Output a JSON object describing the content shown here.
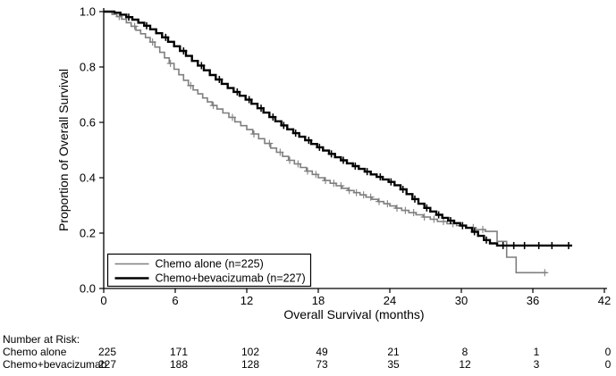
{
  "figure": {
    "background": "#ffffff"
  },
  "chart_data": {
    "type": "line",
    "subtype": "kaplan-meier-step",
    "title": "",
    "xlabel": "Overall Survival (months)",
    "ylabel": "Proportion of Overall Survival",
    "xlim": [
      0,
      42
    ],
    "ylim": [
      0,
      1.0
    ],
    "xticks": [
      0,
      6,
      12,
      18,
      24,
      30,
      36,
      42
    ],
    "yticks": [
      0.0,
      0.2,
      0.4,
      0.6,
      0.8,
      1.0
    ],
    "grid": false,
    "legend_position": "bottom-left-inside",
    "series": [
      {
        "name": "Chemo alone (n=225)",
        "color": "#7f7f7f",
        "line_width": 1.6,
        "points": [
          [
            0,
            1
          ],
          [
            0.7,
            0.99
          ],
          [
            1.1,
            0.982
          ],
          [
            1.5,
            0.973
          ],
          [
            1.9,
            0.96
          ],
          [
            2.3,
            0.947
          ],
          [
            2.7,
            0.933
          ],
          [
            3.1,
            0.92
          ],
          [
            3.5,
            0.906
          ],
          [
            3.9,
            0.89
          ],
          [
            4.3,
            0.872
          ],
          [
            4.7,
            0.853
          ],
          [
            5.1,
            0.833
          ],
          [
            5.5,
            0.813
          ],
          [
            5.9,
            0.792
          ],
          [
            6.3,
            0.772
          ],
          [
            6.7,
            0.752
          ],
          [
            7.1,
            0.733
          ],
          [
            7.5,
            0.717
          ],
          [
            7.9,
            0.703
          ],
          [
            8.3,
            0.688
          ],
          [
            8.7,
            0.674
          ],
          [
            9.1,
            0.661
          ],
          [
            9.5,
            0.648
          ],
          [
            10,
            0.634
          ],
          [
            10.5,
            0.618
          ],
          [
            11,
            0.602
          ],
          [
            11.5,
            0.588
          ],
          [
            12,
            0.574
          ],
          [
            12.5,
            0.558
          ],
          [
            13,
            0.541
          ],
          [
            13.5,
            0.524
          ],
          [
            14,
            0.507
          ],
          [
            14.5,
            0.492
          ],
          [
            15,
            0.477
          ],
          [
            15.5,
            0.463
          ],
          [
            16,
            0.45
          ],
          [
            16.5,
            0.437
          ],
          [
            17,
            0.424
          ],
          [
            17.5,
            0.412
          ],
          [
            18,
            0.4
          ],
          [
            18.5,
            0.39
          ],
          [
            19,
            0.38
          ],
          [
            19.5,
            0.371
          ],
          [
            20,
            0.362
          ],
          [
            20.5,
            0.354
          ],
          [
            21,
            0.346
          ],
          [
            21.5,
            0.338
          ],
          [
            22,
            0.33
          ],
          [
            22.5,
            0.322
          ],
          [
            23,
            0.314
          ],
          [
            23.5,
            0.306
          ],
          [
            24,
            0.298
          ],
          [
            24.5,
            0.29
          ],
          [
            25,
            0.282
          ],
          [
            25.6,
            0.274
          ],
          [
            26.2,
            0.266
          ],
          [
            26.8,
            0.258
          ],
          [
            27.4,
            0.25
          ],
          [
            28,
            0.242
          ],
          [
            28.8,
            0.234
          ],
          [
            29.6,
            0.227
          ],
          [
            30.4,
            0.22
          ],
          [
            31.2,
            0.213
          ],
          [
            32,
            0.206
          ],
          [
            33,
            0.17
          ],
          [
            33.8,
            0.113
          ],
          [
            34.6,
            0.057
          ],
          [
            37.2,
            0.057
          ]
        ],
        "censor_times": [
          1.3,
          2.6,
          4.1,
          5.6,
          7.3,
          9.2,
          10.8,
          12.6,
          13.9,
          14.8,
          15.6,
          16.3,
          17.1,
          17.8,
          18.6,
          19.3,
          19.9,
          20.6,
          21.2,
          21.8,
          22.4,
          23.1,
          23.8,
          24.6,
          25.3,
          26,
          26.9,
          27.7,
          28.5,
          29.3,
          30.1,
          31,
          31.8,
          37
        ]
      },
      {
        "name": "Chemo+bevacizumab (n=227)",
        "color": "#000000",
        "line_width": 2.4,
        "points": [
          [
            0,
            1
          ],
          [
            0.9,
            0.996
          ],
          [
            1.4,
            0.989
          ],
          [
            1.9,
            0.98
          ],
          [
            2.4,
            0.971
          ],
          [
            2.9,
            0.96
          ],
          [
            3.4,
            0.949
          ],
          [
            3.9,
            0.936
          ],
          [
            4.4,
            0.922
          ],
          [
            4.9,
            0.907
          ],
          [
            5.4,
            0.891
          ],
          [
            5.9,
            0.875
          ],
          [
            6.4,
            0.858
          ],
          [
            6.9,
            0.84
          ],
          [
            7.4,
            0.822
          ],
          [
            7.9,
            0.805
          ],
          [
            8.4,
            0.788
          ],
          [
            8.9,
            0.771
          ],
          [
            9.4,
            0.755
          ],
          [
            9.9,
            0.739
          ],
          [
            10.4,
            0.724
          ],
          [
            10.9,
            0.71
          ],
          [
            11.4,
            0.696
          ],
          [
            11.9,
            0.682
          ],
          [
            12.4,
            0.667
          ],
          [
            12.9,
            0.651
          ],
          [
            13.4,
            0.635
          ],
          [
            13.9,
            0.619
          ],
          [
            14.4,
            0.604
          ],
          [
            14.9,
            0.589
          ],
          [
            15.4,
            0.575
          ],
          [
            15.9,
            0.561
          ],
          [
            16.4,
            0.548
          ],
          [
            16.9,
            0.535
          ],
          [
            17.4,
            0.522
          ],
          [
            17.9,
            0.51
          ],
          [
            18.4,
            0.498
          ],
          [
            18.9,
            0.486
          ],
          [
            19.4,
            0.474
          ],
          [
            19.9,
            0.463
          ],
          [
            20.4,
            0.452
          ],
          [
            20.9,
            0.442
          ],
          [
            21.4,
            0.432
          ],
          [
            21.9,
            0.422
          ],
          [
            22.4,
            0.412
          ],
          [
            22.9,
            0.403
          ],
          [
            23.4,
            0.394
          ],
          [
            23.9,
            0.385
          ],
          [
            24.4,
            0.373
          ],
          [
            24.9,
            0.358
          ],
          [
            25.4,
            0.341
          ],
          [
            25.9,
            0.323
          ],
          [
            26.4,
            0.306
          ],
          [
            26.9,
            0.291
          ],
          [
            27.4,
            0.278
          ],
          [
            27.9,
            0.266
          ],
          [
            28.4,
            0.255
          ],
          [
            28.9,
            0.245
          ],
          [
            29.4,
            0.236
          ],
          [
            29.9,
            0.227
          ],
          [
            30.4,
            0.219
          ],
          [
            30.9,
            0.205
          ],
          [
            31.4,
            0.19
          ],
          [
            31.9,
            0.175
          ],
          [
            32.4,
            0.163
          ],
          [
            33,
            0.155
          ],
          [
            39.3,
            0.155
          ]
        ],
        "censor_times": [
          2.1,
          3.6,
          5.2,
          6.7,
          8.2,
          9.7,
          11.2,
          12.2,
          13.2,
          14.2,
          15.1,
          16.1,
          17.2,
          18.1,
          19.1,
          20.1,
          21.1,
          22.1,
          23.2,
          24.1,
          25.1,
          26.1,
          27.1,
          28.1,
          29.1,
          30.1,
          31.1,
          32.1,
          33.5,
          34.4,
          35.3,
          36.5,
          37.6,
          39
        ]
      }
    ]
  },
  "risk_table": {
    "header": "Number at Risk:",
    "times": [
      0,
      6,
      12,
      18,
      24,
      30,
      36,
      42
    ],
    "rows": [
      {
        "name": "Chemo alone",
        "counts": [
          225,
          171,
          102,
          49,
          21,
          8,
          1,
          0
        ]
      },
      {
        "name": "Chemo+bevacizumab",
        "counts": [
          227,
          188,
          128,
          73,
          35,
          12,
          3,
          0
        ]
      }
    ]
  }
}
